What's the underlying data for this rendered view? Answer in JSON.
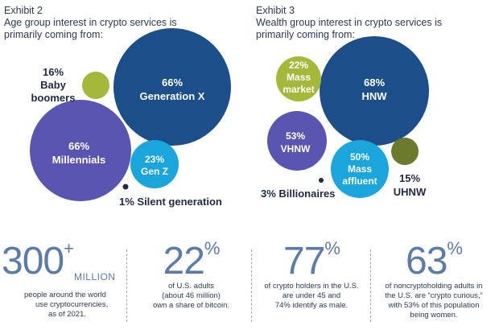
{
  "exhibit2": {
    "title": "Exhibit 2",
    "subtitle_line1": "Age group interest in crypto services is",
    "subtitle_line2": "primarily coming from:"
  },
  "exhibit3": {
    "title": "Exhibit 3",
    "subtitle_line1": "Wealth group interest in crypto services is",
    "subtitle_line2": "primarily coming from:"
  },
  "colors": {
    "dark_blue": "#1c4f8a",
    "purple": "#5a55b0",
    "light_blue": "#1aa6dc",
    "lime": "#a6b83a",
    "olive": "#6b7a2c",
    "stat_blue": "#5b7ba8"
  },
  "chart_data": [
    {
      "type": "bubble",
      "title": "Exhibit 2",
      "subtitle": "Age group interest in crypto services is primarily coming from:",
      "series": [
        {
          "name": "Generation X",
          "value": 66,
          "unit": "%",
          "color": "#1c4f8a"
        },
        {
          "name": "Millennials",
          "value": 66,
          "unit": "%",
          "color": "#5a55b0"
        },
        {
          "name": "Gen Z",
          "value": 23,
          "unit": "%",
          "color": "#1aa6dc"
        },
        {
          "name": "Baby boomers",
          "value": 16,
          "unit": "%",
          "color": "#a6b83a"
        },
        {
          "name": "Silent generation",
          "value": 1,
          "unit": "%",
          "color": "#1f2a44"
        }
      ]
    },
    {
      "type": "bubble",
      "title": "Exhibit 3",
      "subtitle": "Wealth group interest in crypto services is primarily coming from:",
      "series": [
        {
          "name": "HNW",
          "value": 68,
          "unit": "%",
          "color": "#1c4f8a"
        },
        {
          "name": "VHNW",
          "value": 53,
          "unit": "%",
          "color": "#5a55b0"
        },
        {
          "name": "Mass affluent",
          "value": 50,
          "unit": "%",
          "color": "#1aa6dc"
        },
        {
          "name": "Mass market",
          "value": 22,
          "unit": "%",
          "color": "#a6b83a"
        },
        {
          "name": "UHNW",
          "value": 15,
          "unit": "%",
          "color": "#6b7a2c"
        },
        {
          "name": "Billionaires",
          "value": 3,
          "unit": "%",
          "color": "#1f2a44"
        }
      ]
    }
  ],
  "labels": {
    "gen_x": {
      "pct": "66%",
      "name": "Generation X"
    },
    "millennials": {
      "pct": "66%",
      "name": "Millennials"
    },
    "gen_z": {
      "pct": "23%",
      "name": "Gen Z"
    },
    "boomers": {
      "pct": "16%",
      "name1": "Baby",
      "name2": "boomers"
    },
    "silent": {
      "text": "1% Silent generation"
    },
    "hnw": {
      "pct": "68%",
      "name": "HNW"
    },
    "vhnw": {
      "pct": "53%",
      "name": "VHNW"
    },
    "mass_affluent": {
      "pct": "50%",
      "name1": "Mass",
      "name2": "affluent"
    },
    "mass_market": {
      "pct": "22%",
      "name1": "Mass",
      "name2": "market"
    },
    "uhnw": {
      "pct": "15%",
      "name": "UHNW"
    },
    "billionaires": {
      "text": "3% Billionaires"
    }
  },
  "stats": [
    {
      "value": "300",
      "sup": "+",
      "unit": "MILLION",
      "lines": [
        "people around the world",
        "use cryptocurrencies,",
        "as of 2021."
      ]
    },
    {
      "value": "22",
      "sup": "%",
      "unit": "",
      "lines": [
        "of U.S. adults",
        "(about 46 million)",
        "own a share of bitcoin."
      ]
    },
    {
      "value": "77",
      "sup": "%",
      "unit": "",
      "lines": [
        "of crypto holders in the U.S.",
        "are under 45 and",
        "74% identify as male."
      ]
    },
    {
      "value": "63",
      "sup": "%",
      "unit": "",
      "lines": [
        "of noncryptoholding adults in",
        "the U.S. are “crypto curious,”",
        "with 53% of this population",
        "being women."
      ]
    }
  ]
}
